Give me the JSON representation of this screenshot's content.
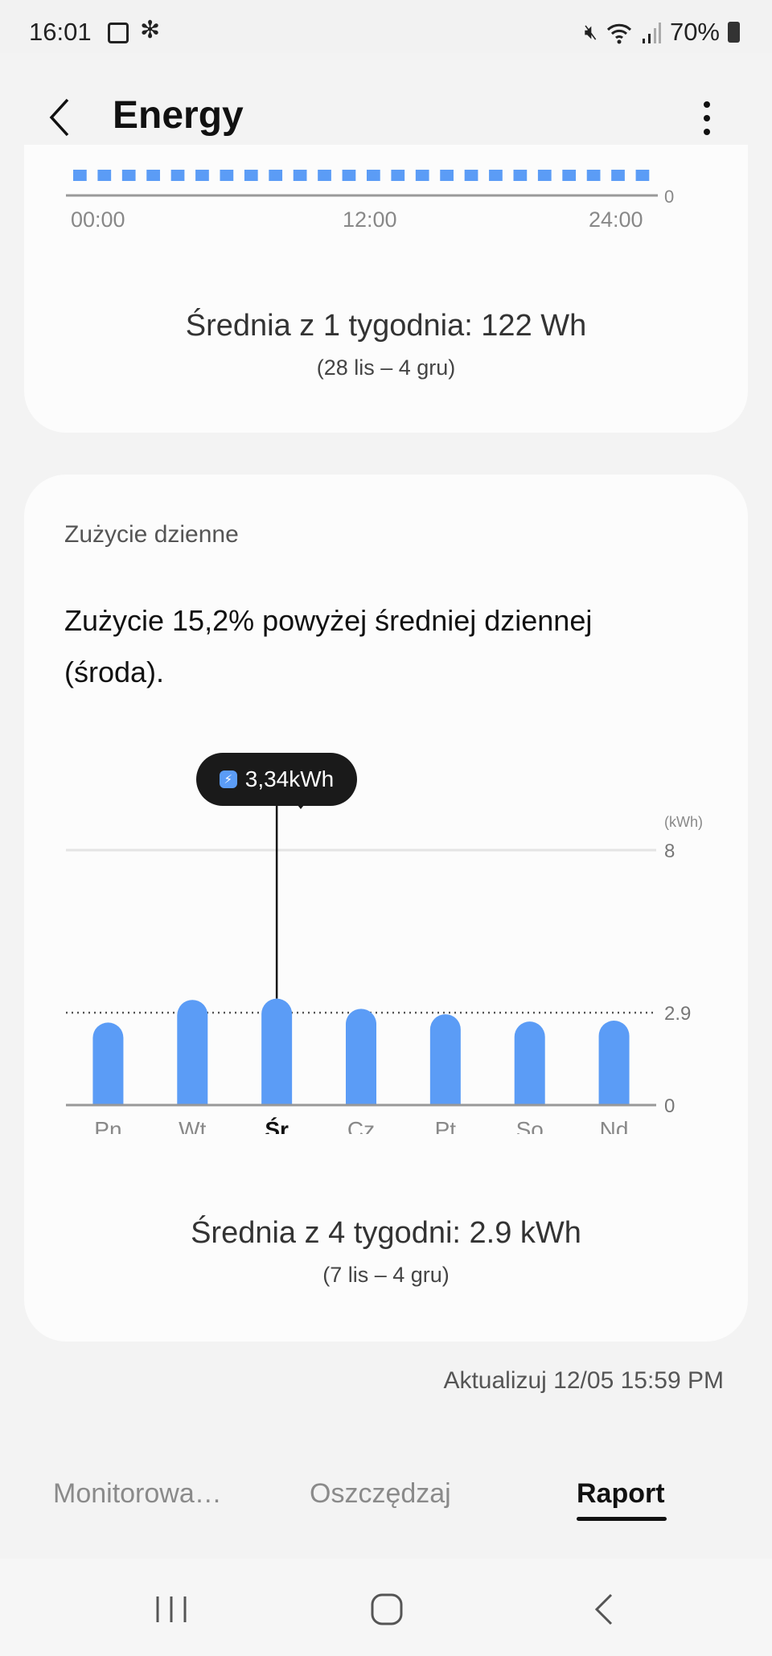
{
  "status_bar": {
    "time": "16:01",
    "battery": "70%",
    "icons": [
      "gallery-icon",
      "fan-icon",
      "mute-icon",
      "wifi-icon",
      "signal-icon",
      "battery-icon"
    ]
  },
  "header": {
    "title": "Energy",
    "back_icon": "chevron-left-icon",
    "menu_icon": "more-vertical-icon"
  },
  "hourly_card": {
    "chart_data": {
      "type": "bar",
      "x_ticks": [
        "00:00",
        "12:00",
        "24:00"
      ],
      "y_ticks": [
        "0"
      ],
      "bar_count": 24,
      "values": [
        0,
        0,
        0,
        0,
        0,
        0,
        0,
        0,
        0,
        0,
        0,
        0,
        0,
        0,
        0,
        0,
        0,
        0,
        0,
        0,
        0,
        0,
        0,
        0
      ],
      "color": "#5b9cf6"
    },
    "average": "Średnia z 1 tygodnia: 122 Wh",
    "range": "(28 lis – 4 gru)"
  },
  "daily_card": {
    "title": "Zużycie dzienne",
    "headline": "Zużycie 15,2% powyżej średniej dziennej (środa).",
    "chart_data": {
      "type": "bar",
      "categories": [
        "Pn",
        "Wt",
        "Śr",
        "Cz",
        "Pt",
        "So",
        "Nd"
      ],
      "values": [
        2.59,
        3.3,
        3.34,
        3.02,
        2.85,
        2.62,
        2.65
      ],
      "selected": "Śr",
      "unit": "(kWh)",
      "y_ticks": [
        "8",
        "2.9",
        "0"
      ],
      "ylim": [
        0,
        8
      ],
      "average_line": 2.9,
      "tooltip": "3,34kWh",
      "bar_color": "#5b9cf6"
    },
    "average": "Średnia z 4 tygodni: 2.9 kWh",
    "range": "(7 lis – 4 gru)"
  },
  "updated": "Aktualizuj 12/05 15:59 PM",
  "tabs": [
    {
      "label": "Monitorowa…"
    },
    {
      "label": "Oszczędzaj"
    },
    {
      "label": "Raport",
      "active": true
    }
  ],
  "nav": [
    "recents-icon",
    "home-icon",
    "back-icon"
  ]
}
